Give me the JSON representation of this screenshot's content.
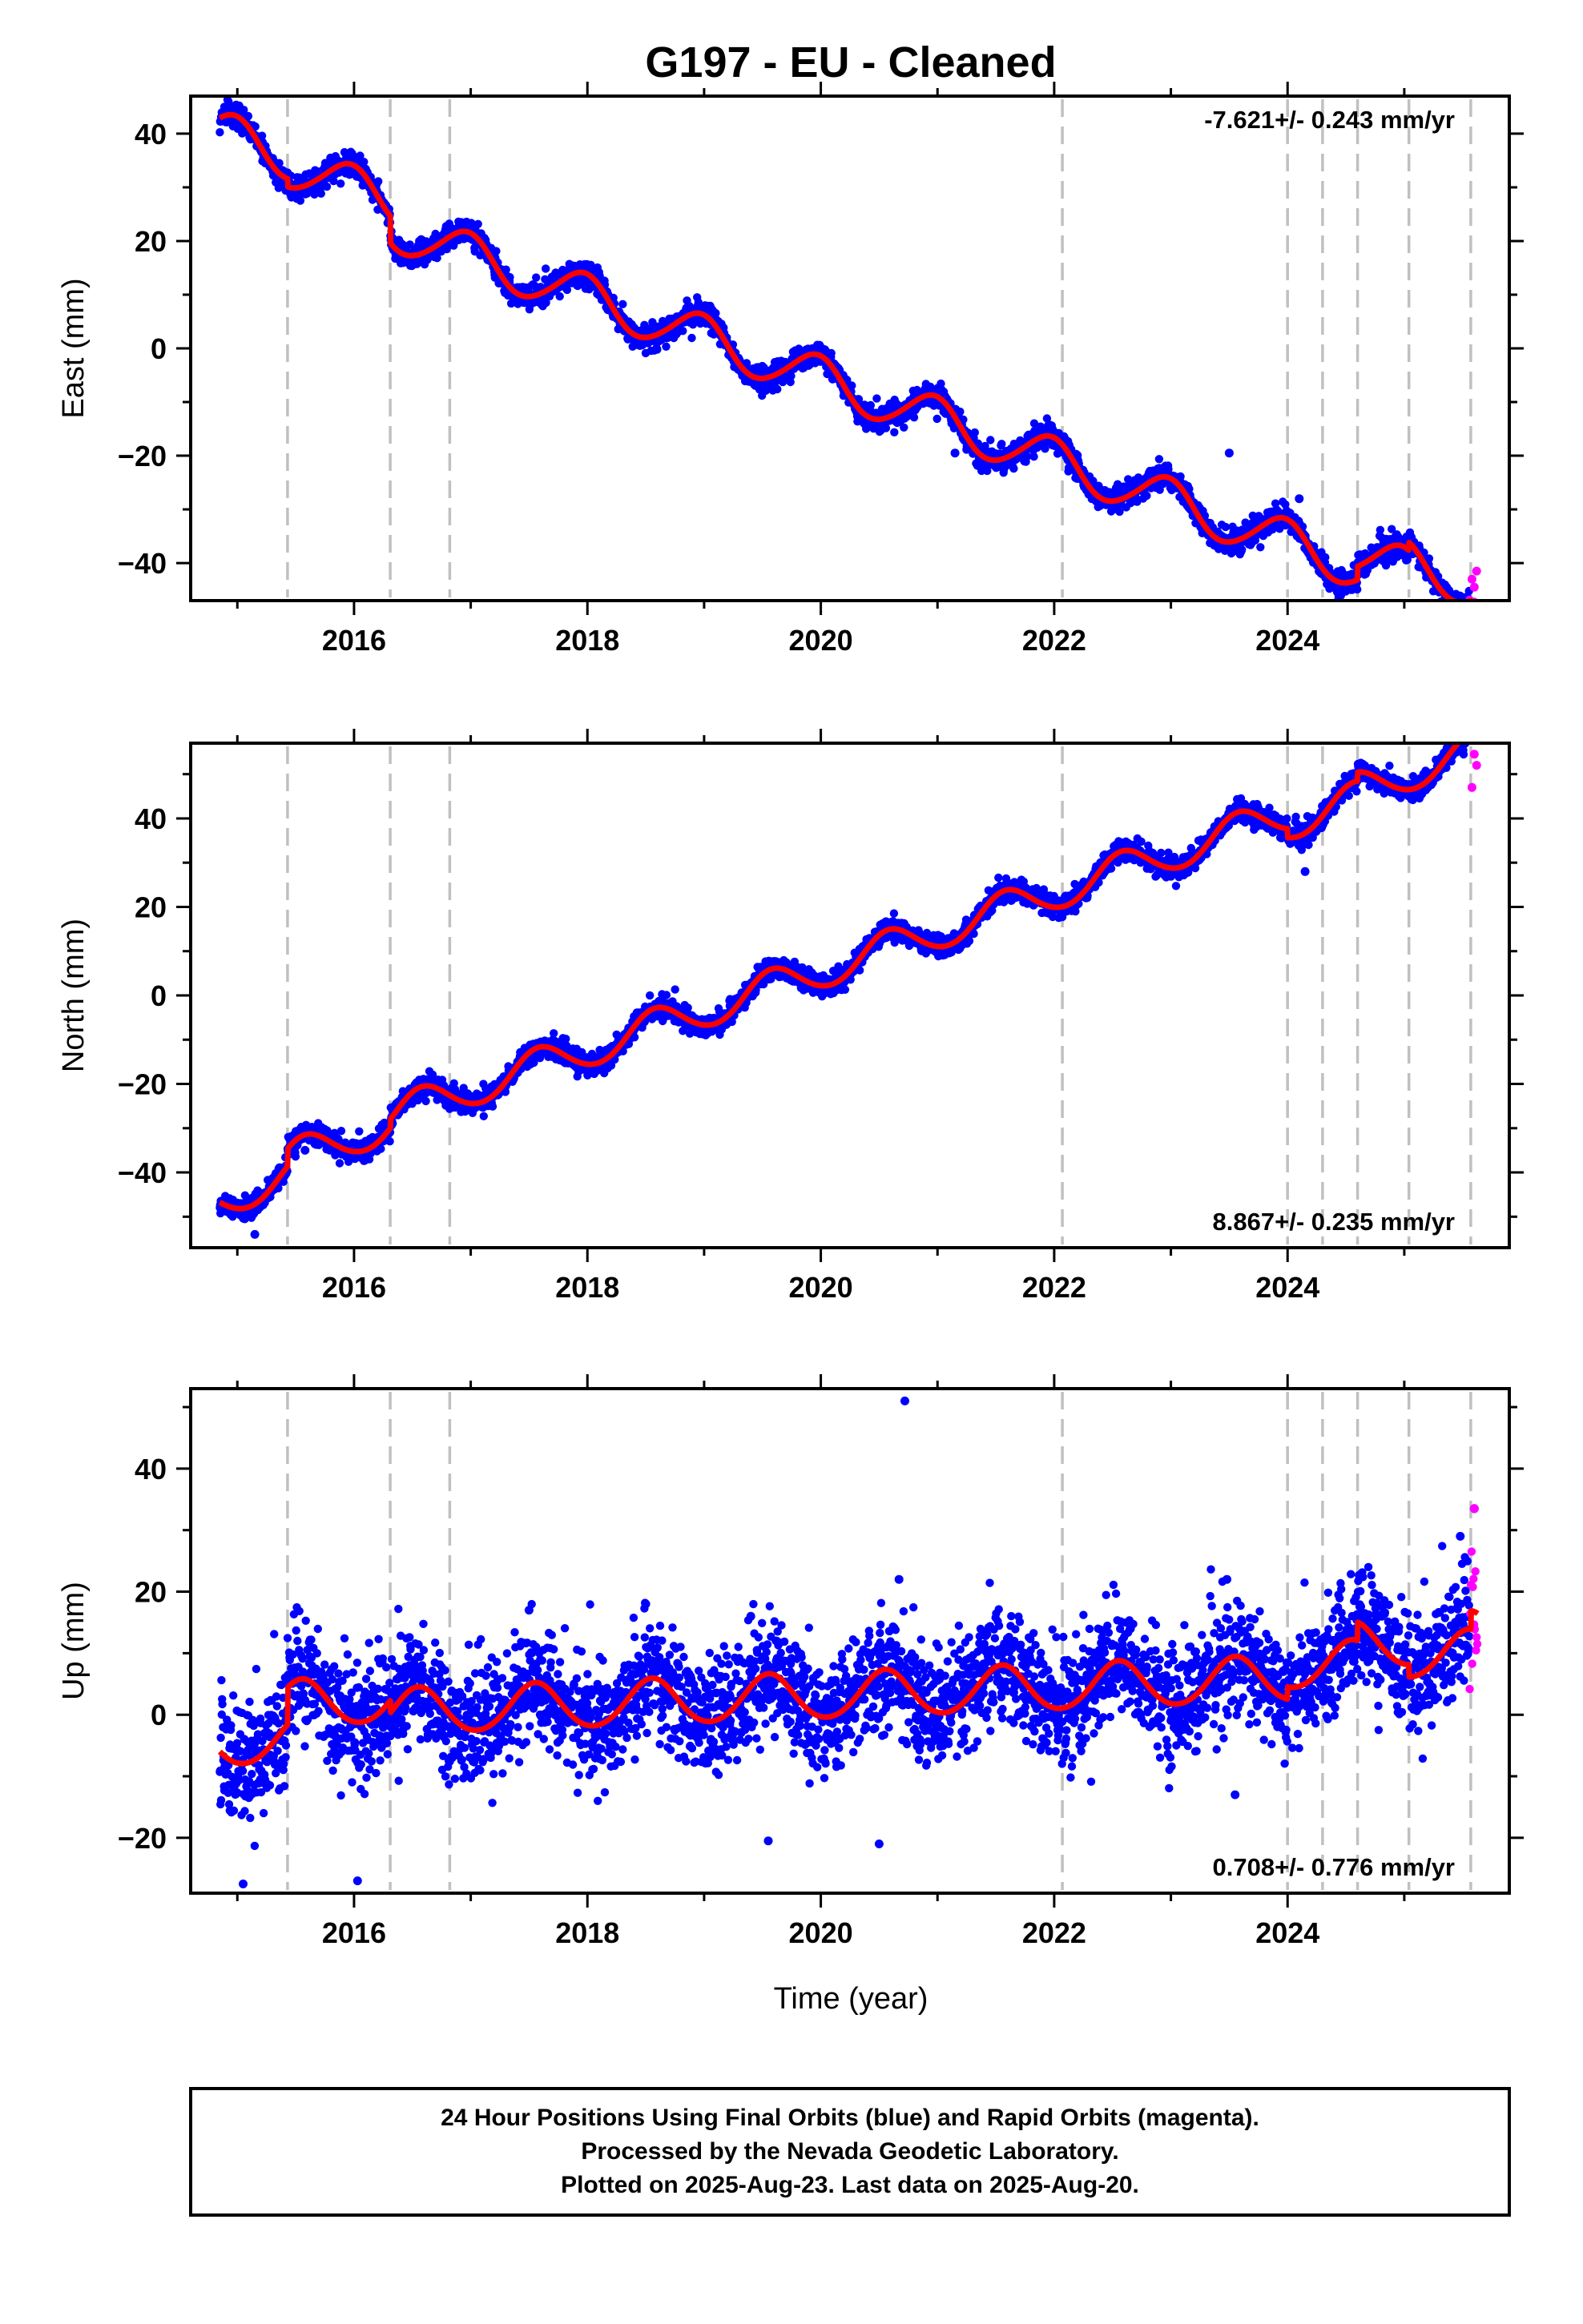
{
  "figure": {
    "title": "G197  - EU - Cleaned",
    "xlabel": "Time (year)",
    "footer_lines": [
      "24 Hour Positions Using Final Orbits (blue) and Rapid Orbits (magenta).",
      "Processed by the Nevada Geodetic Laboratory.",
      "Plotted on 2025-Aug-23. Last data on 2025-Aug-20."
    ]
  },
  "colors": {
    "final_orbits": "#0000ff",
    "rapid_orbits": "#ff00ff",
    "model_fit": "#ff0000",
    "event_lines": "#c0c0c0",
    "frame": "#000000"
  },
  "chart_data": [
    {
      "type": "scatter",
      "component": "East",
      "ylabel": "East (mm)",
      "rate_label": "-7.621+/- 0.243 mm/yr",
      "rate_position": "top-right",
      "xlim": [
        2014.6,
        2025.9
      ],
      "ylim": [
        -47,
        47
      ],
      "xticks": [
        2016,
        2018,
        2020,
        2022,
        2024
      ],
      "yticks": [
        -40,
        -20,
        0,
        20,
        40
      ],
      "event_lines_x": [
        2015.43,
        2016.31,
        2016.82,
        2022.07,
        2024.0,
        2024.3,
        2024.6,
        2025.04,
        2025.57
      ],
      "data_span": [
        2014.85,
        2025.63
      ],
      "rapid_span": [
        2025.56,
        2025.63
      ],
      "trend": {
        "intercept_2020": 0.8,
        "rate_mm_per_yr": -7.621
      },
      "seasonal": {
        "annual_cos": 4.0,
        "annual_sin": -1.0,
        "semiannual_cos": 0.3,
        "semiannual_sin": 0.2
      },
      "offsets": [
        {
          "x": 2015.43,
          "dy": -1.5
        },
        {
          "x": 2016.31,
          "dy": -5.0
        },
        {
          "x": 2024.6,
          "dy": 2.5
        },
        {
          "x": 2025.04,
          "dy": 1.5
        },
        {
          "x": 2025.57,
          "dy": -3.0
        }
      ],
      "scatter_sd": 1.1,
      "outliers": [
        {
          "x": 2021.15,
          "y": -19.5
        },
        {
          "x": 2024.1,
          "y": -28.0
        },
        {
          "x": 2025.6,
          "y": -44.5
        },
        {
          "x": 2025.58,
          "y": -43.0
        },
        {
          "x": 2025.62,
          "y": -41.5
        },
        {
          "x": 2023.5,
          "y": -19.5
        }
      ]
    },
    {
      "type": "scatter",
      "component": "North",
      "ylabel": "North (mm)",
      "rate_label": "8.867+/- 0.235 mm/yr",
      "rate_position": "bottom-right",
      "xlim": [
        2014.6,
        2025.9
      ],
      "ylim": [
        -57,
        57
      ],
      "xticks": [
        2016,
        2018,
        2020,
        2022,
        2024
      ],
      "yticks": [
        -40,
        -20,
        0,
        20,
        40
      ],
      "event_lines_x": [
        2015.43,
        2016.31,
        2016.82,
        2022.07,
        2024.0,
        2024.3,
        2024.6,
        2025.04,
        2025.57
      ],
      "data_span": [
        2014.85,
        2025.63
      ],
      "rapid_span": [
        2025.56,
        2025.63
      ],
      "trend": {
        "intercept_2020": -0.5,
        "rate_mm_per_yr": 8.867
      },
      "seasonal": {
        "annual_cos": -3.5,
        "annual_sin": -2.0,
        "semiannual_cos": 0.2,
        "semiannual_sin": 0.1
      },
      "offsets": [
        {
          "x": 2015.43,
          "dy": 4.0
        },
        {
          "x": 2016.31,
          "dy": 2.0
        },
        {
          "x": 2024.0,
          "dy": -2.0
        },
        {
          "x": 2024.6,
          "dy": 2.0
        },
        {
          "x": 2025.57,
          "dy": 4.0
        }
      ],
      "scatter_sd": 1.2,
      "outliers": [
        {
          "x": 2015.58,
          "y": -35.0
        },
        {
          "x": 2015.15,
          "y": -54.0
        },
        {
          "x": 2025.6,
          "y": 54.5
        },
        {
          "x": 2025.62,
          "y": 52.0
        },
        {
          "x": 2025.58,
          "y": 47.0
        },
        {
          "x": 2024.15,
          "y": 28.0
        }
      ]
    },
    {
      "type": "scatter",
      "component": "Up",
      "ylabel": "Up (mm)",
      "rate_label": "0.708+/- 0.776 mm/yr",
      "rate_position": "bottom-right",
      "xlim": [
        2014.6,
        2025.9
      ],
      "ylim": [
        -29,
        53
      ],
      "xticks": [
        2016,
        2018,
        2020,
        2022,
        2024
      ],
      "yticks": [
        -20,
        0,
        20,
        40
      ],
      "event_lines_x": [
        2015.43,
        2016.31,
        2016.82,
        2022.07,
        2024.0,
        2024.3,
        2024.6,
        2025.04,
        2025.57
      ],
      "data_span": [
        2014.85,
        2025.63
      ],
      "rapid_span": [
        2025.56,
        2025.63
      ],
      "trend": {
        "intercept_2020": -1.0,
        "rate_mm_per_yr": 0.708
      },
      "seasonal": {
        "annual_cos": -3.5,
        "annual_sin": -1.2,
        "semiannual_cos": 0.2,
        "semiannual_sin": 0.2
      },
      "offsets": [
        {
          "x": 2015.43,
          "dy": 6.0
        },
        {
          "x": 2016.31,
          "dy": -2.0
        },
        {
          "x": 2024.0,
          "dy": 2.0
        },
        {
          "x": 2024.6,
          "dy": 3.0
        },
        {
          "x": 2025.04,
          "dy": -2.0
        },
        {
          "x": 2025.57,
          "dy": 3.0
        }
      ],
      "scatter_sd": 4.6,
      "outliers": [
        {
          "x": 2020.72,
          "y": 51.0
        },
        {
          "x": 2020.67,
          "y": 22.0
        },
        {
          "x": 2019.55,
          "y": -20.5
        },
        {
          "x": 2020.5,
          "y": -21.0
        },
        {
          "x": 2016.03,
          "y": -27.0
        },
        {
          "x": 2015.05,
          "y": -27.5
        },
        {
          "x": 2025.6,
          "y": 33.5
        },
        {
          "x": 2025.48,
          "y": 29.0
        },
        {
          "x": 2023.48,
          "y": 22.0
        },
        {
          "x": 2017.5,
          "y": 17.0
        },
        {
          "x": 2018.5,
          "y": 18.0
        },
        {
          "x": 2019.4,
          "y": 16.0
        },
        {
          "x": 2023.55,
          "y": -13.0
        }
      ]
    }
  ]
}
